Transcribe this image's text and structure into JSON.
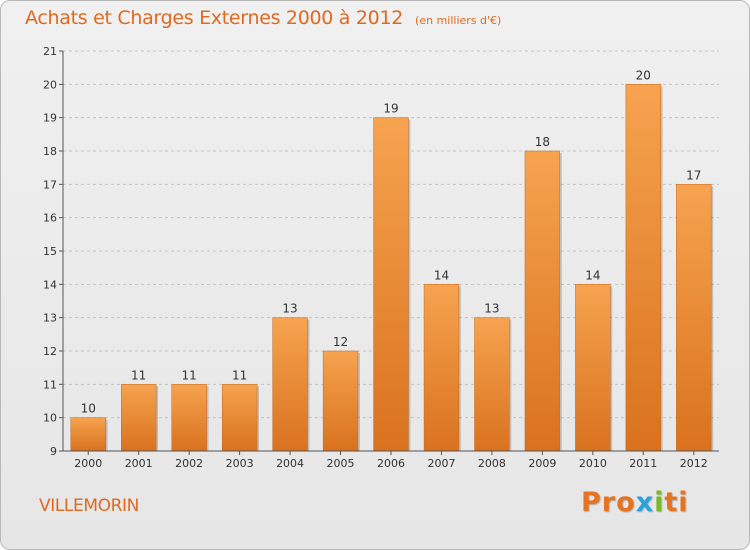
{
  "header": {
    "title": "Achats et Charges Externes 2000 à 2012",
    "unit": "(en milliers d'€)"
  },
  "footer": {
    "commune": "VILLEMORIN",
    "logo": [
      "P",
      "r",
      "o",
      "x",
      "i",
      "t",
      "i"
    ]
  },
  "colors": {
    "accent": "#dd6a22",
    "bar_light": "#f6a34f",
    "bar_dark": "#d9721f",
    "logo": [
      "#e8731e",
      "#e8731e",
      "#e8731e",
      "#2aa2dc",
      "#7ab929",
      "#e8731e",
      "#e8731e"
    ]
  },
  "chart_data": {
    "type": "bar",
    "title": "Achats et Charges Externes 2000 à 2012",
    "subtitle": "(en milliers d'€)",
    "xlabel": "",
    "ylabel": "",
    "categories": [
      "2000",
      "2001",
      "2002",
      "2003",
      "2004",
      "2005",
      "2006",
      "2007",
      "2008",
      "2009",
      "2010",
      "2011",
      "2012"
    ],
    "values": [
      10,
      11,
      11,
      11,
      13,
      12,
      19,
      14,
      13,
      18,
      14,
      20,
      17
    ],
    "value_labels": [
      "10",
      "11",
      "11",
      "11",
      "13",
      "12",
      "19",
      "14",
      "13",
      "18",
      "14",
      "20",
      "17"
    ],
    "ylim": [
      9,
      21
    ],
    "yticks": [
      "9",
      "10",
      "11",
      "12",
      "13",
      "14",
      "15",
      "16",
      "17",
      "18",
      "19",
      "20",
      "21"
    ],
    "grid": "horizontal dashed",
    "legend": "none"
  }
}
